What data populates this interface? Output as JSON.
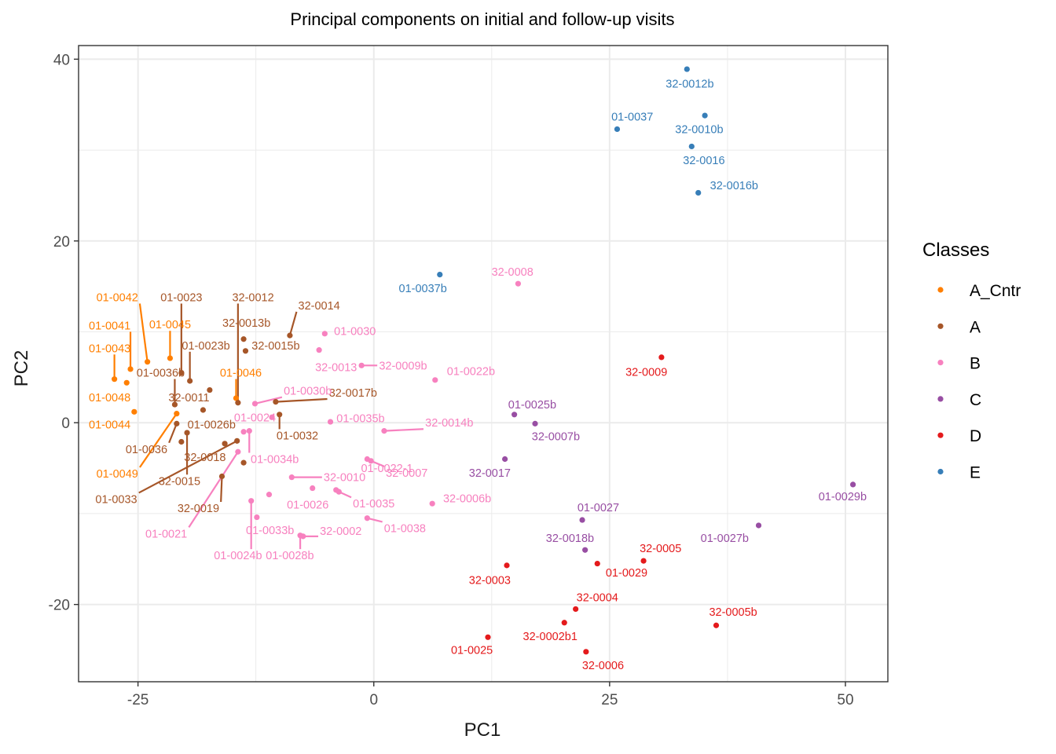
{
  "chart_data": {
    "type": "scatter",
    "title": "Principal components on initial and follow-up visits",
    "xlabel": "PC1",
    "ylabel": "PC2",
    "xlim": [
      -31.3,
      54.5
    ],
    "ylim": [
      -28.5,
      41.5
    ],
    "x_ticks": [
      -25,
      0,
      25,
      50
    ],
    "x_tick_labels": [
      "-25",
      "0",
      "25",
      "50"
    ],
    "y_ticks": [
      -20,
      0,
      20,
      40
    ],
    "y_tick_labels": [
      "-20",
      "0",
      "20",
      "40"
    ],
    "grid": true,
    "legend": {
      "title": "Classes",
      "position": "right",
      "entries": [
        {
          "name": "A_Cntr",
          "color": "#FF7F00"
        },
        {
          "name": "A",
          "color": "#A65628"
        },
        {
          "name": "B",
          "color": "#F781BF"
        },
        {
          "name": "C",
          "color": "#984EA3"
        },
        {
          "name": "D",
          "color": "#E41A1C"
        },
        {
          "name": "E",
          "color": "#377EB8"
        }
      ]
    },
    "series": [
      {
        "name": "A_Cntr",
        "color": "#FF7F00",
        "points": [
          {
            "label": "01-0042",
            "x": -24,
            "y": 6.7,
            "lx": -27.2,
            "ly": 13.8
          },
          {
            "label": "01-0041",
            "x": -25.8,
            "y": 5.9,
            "lx": -28.0,
            "ly": 10.7
          },
          {
            "label": "01-0045",
            "x": -21.6,
            "y": 7.1,
            "lx": -21.6,
            "ly": 10.8
          },
          {
            "label": "01-0043",
            "x": -27.5,
            "y": 4.8,
            "lx": -28.0,
            "ly": 8.2
          },
          {
            "label": "01-0048",
            "x": -26.2,
            "y": 4.4,
            "lx": -28.0,
            "ly": 2.8
          },
          {
            "label": "01-0044",
            "x": -25.4,
            "y": 1.2,
            "lx": -28.0,
            "ly": -0.2
          },
          {
            "label": "01-0046",
            "x": -14.6,
            "y": 2.7,
            "lx": -14.1,
            "ly": 5.5
          },
          {
            "label": "01-0049",
            "x": -20.9,
            "y": 1.0,
            "lx": -27.2,
            "ly": -5.6
          }
        ]
      },
      {
        "name": "A",
        "color": "#A65628",
        "points": [
          {
            "label": "01-0023",
            "x": -20.4,
            "y": 5.5,
            "lx": -20.4,
            "ly": 13.8
          },
          {
            "label": "01-0023b",
            "x": -19.5,
            "y": 4.6,
            "lx": -17.8,
            "ly": 8.5
          },
          {
            "label": "01-0036b",
            "x": -21.1,
            "y": 2.0,
            "lx": -22.6,
            "ly": 5.5
          },
          {
            "label": "32-0012",
            "x": -14.4,
            "y": 2.2,
            "lx": -12.8,
            "ly": 13.8
          },
          {
            "label": "32-0013b",
            "x": -13.8,
            "y": 9.2,
            "lx": -13.5,
            "ly": 11.0
          },
          {
            "label": "32-0015b",
            "x": -13.6,
            "y": 7.9,
            "lx": -10.4,
            "ly": 8.5
          },
          {
            "label": "32-0014",
            "x": -8.9,
            "y": 9.6,
            "lx": -5.8,
            "ly": 12.9
          },
          {
            "label": "32-0011",
            "x": -17.4,
            "y": 3.6,
            "lx": -19.6,
            "ly": 2.8
          },
          {
            "label": "32-0017b",
            "x": -10.4,
            "y": 2.3,
            "lx": -2.2,
            "ly": 3.3
          },
          {
            "label": "01-0026b",
            "x": -18.1,
            "y": 1.4,
            "lx": -17.2,
            "ly": -0.2
          },
          {
            "label": "01-0032",
            "x": -10,
            "y": 0.9,
            "lx": -8.1,
            "ly": -1.4
          },
          {
            "label": "01-0036",
            "x": -20.9,
            "y": -0.1,
            "lx": -24.1,
            "ly": -2.9
          },
          {
            "label": "32-0018",
            "x": -15.8,
            "y": -2.3,
            "lx": -17.9,
            "ly": -3.8
          },
          {
            "label": "32-0015",
            "x": -19.8,
            "y": -1.1,
            "lx": -20.6,
            "ly": -6.4
          },
          {
            "label": "01-0033",
            "x": -14.5,
            "y": -2.0,
            "lx": -27.3,
            "ly": -8.4
          },
          {
            "label": "32-0019",
            "x": -16.1,
            "y": -5.9,
            "lx": -18.6,
            "ly": -9.4
          },
          {
            "label": "",
            "x": -13.8,
            "y": -4.4
          },
          {
            "label": "",
            "x": -20.4,
            "y": -2.1
          }
        ]
      },
      {
        "name": "B",
        "color": "#F781BF",
        "points": [
          {
            "label": "32-0008",
            "x": 15.3,
            "y": 15.3,
            "lx": 14.7,
            "ly": 16.6
          },
          {
            "label": "01-0030",
            "x": -5.2,
            "y": 9.8,
            "lx": -2.0,
            "ly": 10.1
          },
          {
            "label": "32-0013",
            "x": -5.8,
            "y": 8.0,
            "lx": -4.0,
            "ly": 6.1
          },
          {
            "label": "32-0009b",
            "x": -1.3,
            "y": 6.3,
            "lx": 3.1,
            "ly": 6.3
          },
          {
            "label": "01-0022b",
            "x": 6.5,
            "y": 4.7,
            "lx": 10.3,
            "ly": 5.7
          },
          {
            "label": "01-0030b",
            "x": -12.6,
            "y": 2.1,
            "lx": -7.0,
            "ly": 3.5
          },
          {
            "label": "01-0024",
            "x": -10.8,
            "y": 0.6,
            "lx": -12.6,
            "ly": 0.6
          },
          {
            "label": "01-0035b",
            "x": -4.6,
            "y": 0.1,
            "lx": -1.4,
            "ly": 0.5
          },
          {
            "label": "32-0014b",
            "x": 1.1,
            "y": -0.9,
            "lx": 8.0,
            "ly": 0.0
          },
          {
            "label": "01-0034b",
            "x": -13.2,
            "y": -0.9,
            "lx": -10.5,
            "ly": -4.0
          },
          {
            "label": "01-0022-1",
            "x": -0.7,
            "y": -4.0,
            "lx": 1.4,
            "ly": -5.0
          },
          {
            "label": "32-0007",
            "x": -0.3,
            "y": -4.2,
            "lx": 3.5,
            "ly": -5.5
          },
          {
            "label": "32-0010",
            "x": -8.7,
            "y": -6.0,
            "lx": -3.1,
            "ly": -6.0
          },
          {
            "label": "32-0006b",
            "x": 6.2,
            "y": -8.9,
            "lx": 9.9,
            "ly": -8.3
          },
          {
            "label": "01-0026",
            "x": -6.5,
            "y": -7.2,
            "lx": -7.0,
            "ly": -9.0
          },
          {
            "label": "01-0035",
            "x": -3.7,
            "y": -7.6,
            "lx": 0.0,
            "ly": -8.9
          },
          {
            "label": "01-0038",
            "x": -0.7,
            "y": -10.5,
            "lx": 3.3,
            "ly": -11.6
          },
          {
            "label": "01-0021",
            "x": -14.4,
            "y": -3.2,
            "lx": -22.0,
            "ly": -12.2
          },
          {
            "label": "01-0033b",
            "x": -12.4,
            "y": -10.4,
            "lx": -11.0,
            "ly": -11.8
          },
          {
            "label": "32-0002",
            "x": -7.5,
            "y": -12.5,
            "lx": -3.5,
            "ly": -11.9
          },
          {
            "label": "01-0024b",
            "x": -13.0,
            "y": -8.6,
            "lx": -14.4,
            "ly": -14.6
          },
          {
            "label": "01-0028b",
            "x": -7.8,
            "y": -12.4,
            "lx": -8.9,
            "ly": -14.6
          },
          {
            "label": "",
            "x": -13.8,
            "y": -1.0
          },
          {
            "label": "",
            "x": -11.1,
            "y": -7.9
          },
          {
            "label": "",
            "x": -4.0,
            "y": -7.4
          }
        ]
      },
      {
        "name": "C",
        "color": "#984EA3",
        "points": [
          {
            "label": "01-0025b",
            "x": 14.9,
            "y": 0.9,
            "lx": 16.8,
            "ly": 2.0
          },
          {
            "label": "32-0007b",
            "x": 17.1,
            "y": -0.1,
            "lx": 19.3,
            "ly": -1.5
          },
          {
            "label": "32-0017",
            "x": 13.9,
            "y": -4.0,
            "lx": 12.3,
            "ly": -5.5
          },
          {
            "label": "01-0029b",
            "x": 50.8,
            "y": -6.8,
            "lx": 49.7,
            "ly": -8.1
          },
          {
            "label": "01-0027",
            "x": 22.1,
            "y": -10.7,
            "lx": 23.8,
            "ly": -9.3
          },
          {
            "label": "01-0027b",
            "x": 40.8,
            "y": -11.3,
            "lx": 37.2,
            "ly": -12.7
          },
          {
            "label": "32-0018b",
            "x": 22.4,
            "y": -14.0,
            "lx": 20.8,
            "ly": -12.7
          }
        ]
      },
      {
        "name": "D",
        "color": "#E41A1C",
        "points": [
          {
            "label": "32-0009",
            "x": 30.5,
            "y": 7.2,
            "lx": 28.9,
            "ly": 5.6
          },
          {
            "label": "32-0005",
            "x": 28.6,
            "y": -15.2,
            "lx": 30.4,
            "ly": -13.8
          },
          {
            "label": "01-0029",
            "x": 23.7,
            "y": -15.5,
            "lx": 26.8,
            "ly": -16.5
          },
          {
            "label": "32-0003",
            "x": 14.1,
            "y": -15.7,
            "lx": 12.3,
            "ly": -17.3
          },
          {
            "label": "32-0004",
            "x": 21.4,
            "y": -20.5,
            "lx": 23.7,
            "ly": -19.2
          },
          {
            "label": "32-0005b",
            "x": 36.3,
            "y": -22.3,
            "lx": 38.1,
            "ly": -20.8
          },
          {
            "label": "32-0002b1",
            "x": 20.2,
            "y": -22.0,
            "lx": 18.7,
            "ly": -23.5
          },
          {
            "label": "01-0025",
            "x": 12.1,
            "y": -23.6,
            "lx": 10.4,
            "ly": -25.0
          },
          {
            "label": "32-0006",
            "x": 22.5,
            "y": -25.2,
            "lx": 24.3,
            "ly": -26.7
          }
        ]
      },
      {
        "name": "E",
        "color": "#377EB8",
        "points": [
          {
            "label": "32-0012b",
            "x": 33.2,
            "y": 38.9,
            "lx": 33.5,
            "ly": 37.3
          },
          {
            "label": "01-0037",
            "x": 25.8,
            "y": 32.3,
            "lx": 27.4,
            "ly": 33.7
          },
          {
            "label": "32-0010b",
            "x": 35.1,
            "y": 33.8,
            "lx": 34.5,
            "ly": 32.3
          },
          {
            "label": "32-0016",
            "x": 33.7,
            "y": 30.4,
            "lx": 35.0,
            "ly": 28.9
          },
          {
            "label": "32-0016b",
            "x": 34.4,
            "y": 25.3,
            "lx": 38.2,
            "ly": 26.1
          },
          {
            "label": "01-0037b",
            "x": 7.0,
            "y": 16.3,
            "lx": 5.2,
            "ly": 14.8
          }
        ]
      }
    ]
  }
}
